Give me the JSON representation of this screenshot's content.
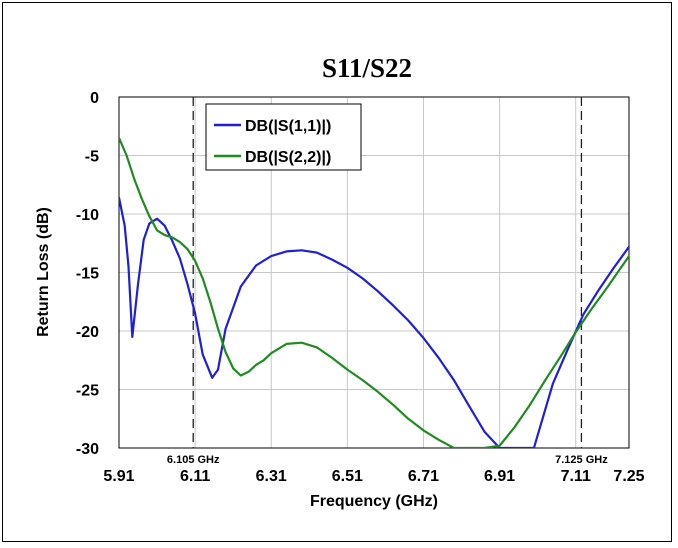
{
  "chart_data": {
    "type": "line",
    "title": "S11/S22",
    "xlabel": "Frequency (GHz)",
    "ylabel": "Return Loss (dB)",
    "xlim": [
      5.91,
      7.25
    ],
    "ylim": [
      -30,
      0
    ],
    "x_ticks": [
      "5.91",
      "6.11",
      "6.31",
      "6.51",
      "6.71",
      "6.91",
      "7.11",
      "7.25"
    ],
    "x_tick_values": [
      5.91,
      6.11,
      6.31,
      6.51,
      6.71,
      6.91,
      7.11,
      7.25
    ],
    "y_ticks": [
      "0",
      "-5",
      "-10",
      "-15",
      "-20",
      "-25",
      "-30"
    ],
    "y_tick_values": [
      0,
      -5,
      -10,
      -15,
      -20,
      -25,
      -30
    ],
    "grid": true,
    "legend_position": "top-left",
    "markers": [
      {
        "x": 6.105,
        "label": "6.105 GHz"
      },
      {
        "x": 7.125,
        "label": "7.125 GHz"
      }
    ],
    "series": [
      {
        "name": "DB(|S(1,1)|)",
        "color": "#1f1fdc",
        "x": [
          5.91,
          5.925,
          5.935,
          5.945,
          5.96,
          5.975,
          5.99,
          6.01,
          6.03,
          6.05,
          6.07,
          6.09,
          6.11,
          6.13,
          6.155,
          6.17,
          6.19,
          6.23,
          6.27,
          6.31,
          6.35,
          6.39,
          6.43,
          6.47,
          6.51,
          6.55,
          6.59,
          6.63,
          6.67,
          6.71,
          6.75,
          6.79,
          6.83,
          6.87,
          6.91,
          7.0,
          7.05,
          7.09,
          7.13,
          7.17,
          7.21,
          7.25
        ],
        "y": [
          -8.6,
          -11,
          -14.5,
          -20.5,
          -16,
          -12.2,
          -10.8,
          -10.4,
          -11,
          -12.3,
          -13.8,
          -16,
          -18.5,
          -22,
          -24,
          -23.3,
          -19.8,
          -16.2,
          -14.4,
          -13.6,
          -13.2,
          -13.1,
          -13.3,
          -13.9,
          -14.6,
          -15.5,
          -16.6,
          -17.8,
          -19.1,
          -20.6,
          -22.3,
          -24.2,
          -26.4,
          -28.6,
          -30,
          -30,
          -24.5,
          -21.5,
          -18.6,
          -16.5,
          -14.6,
          -12.8
        ]
      },
      {
        "name": "DB(|S(2,2)|)",
        "color": "#1e8c1e",
        "x": [
          5.91,
          5.93,
          5.95,
          5.97,
          5.99,
          6.01,
          6.03,
          6.05,
          6.07,
          6.09,
          6.11,
          6.13,
          6.15,
          6.17,
          6.19,
          6.21,
          6.23,
          6.25,
          6.27,
          6.29,
          6.31,
          6.35,
          6.39,
          6.43,
          6.47,
          6.51,
          6.55,
          6.59,
          6.63,
          6.67,
          6.71,
          6.75,
          6.79,
          6.83,
          6.87,
          6.91,
          6.95,
          6.99,
          7.03,
          7.07,
          7.11,
          7.15,
          7.19,
          7.25
        ],
        "y": [
          -3.5,
          -5,
          -7,
          -8.7,
          -10.2,
          -11.4,
          -11.8,
          -12,
          -12.4,
          -13,
          -14,
          -15.5,
          -17.5,
          -19.8,
          -21.8,
          -23.2,
          -23.8,
          -23.5,
          -22.9,
          -22.5,
          -21.9,
          -21.1,
          -21,
          -21.4,
          -22.3,
          -23.3,
          -24.2,
          -25.2,
          -26.3,
          -27.5,
          -28.5,
          -29.3,
          -30,
          -30,
          -30,
          -29.8,
          -28.2,
          -26.3,
          -24.2,
          -22.2,
          -20.1,
          -18.2,
          -16.4,
          -13.6
        ]
      }
    ]
  }
}
